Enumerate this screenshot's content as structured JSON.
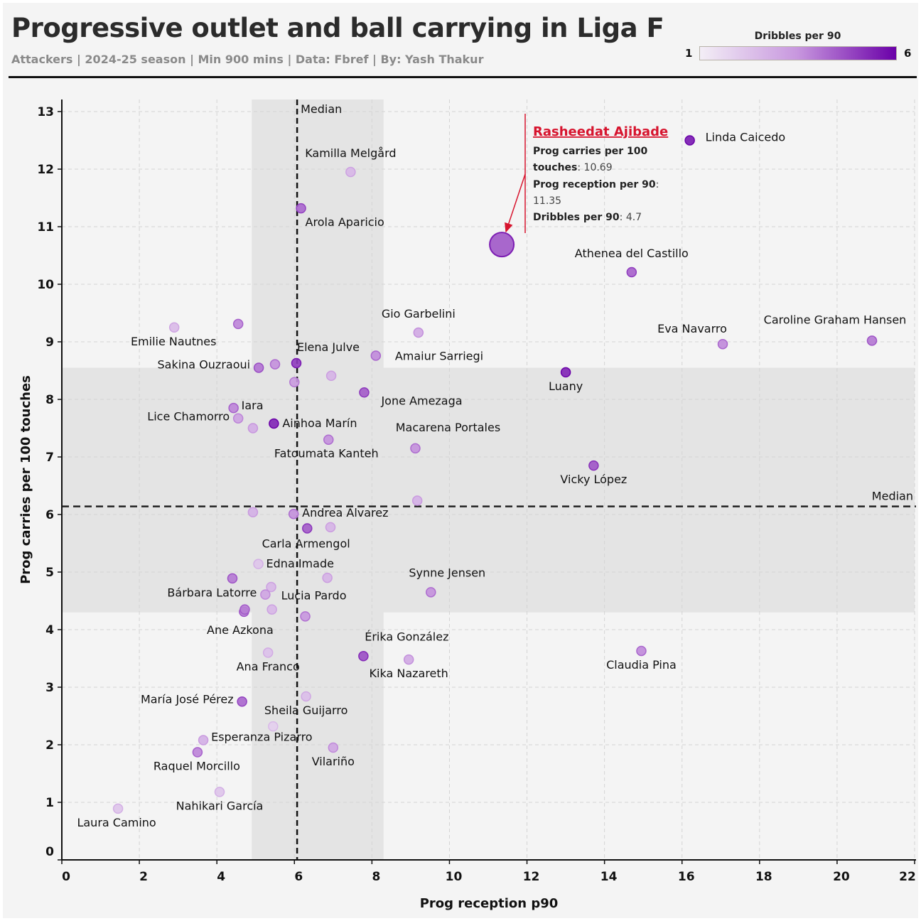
{
  "header": {
    "title": "Progressive outlet and ball carrying in Liga F",
    "subtitle": "Attackers | 2024-25 season | Min 900 mins | Data: Fbref | By: Yash Thakur"
  },
  "colorbar": {
    "title": "Dribbles per 90",
    "min_label": "1",
    "max_label": "6",
    "min": 1,
    "max": 6,
    "color_low": "#f3eef6",
    "color_high": "#6a00a8"
  },
  "annotation": {
    "player": "Rasheedat Ajibade",
    "line1_bold": "Prog carries per 100",
    "line2_bold": "touches",
    "line2_value": ": 10.69",
    "line3_bold": "Prog reception per 90",
    "line3_colon": ":",
    "line4_value": "11.35",
    "line5_bold": "Dribbles per 90",
    "line5_value": ": 4.7",
    "color": "#d7142e"
  },
  "chart_data": {
    "type": "scatter",
    "title": "Progressive outlet and ball carrying in Liga F",
    "xlabel": "Prog reception p90",
    "ylabel": "Prog carries per 100 touches",
    "xlim": [
      0,
      22
    ],
    "ylim": [
      0,
      13
    ],
    "xticks": [
      0,
      2,
      4,
      6,
      8,
      10,
      12,
      14,
      16,
      18,
      20,
      22
    ],
    "yticks": [
      0,
      1,
      2,
      3,
      4,
      5,
      6,
      7,
      8,
      9,
      10,
      11,
      12,
      13
    ],
    "grid": true,
    "median_x": 6.07,
    "median_y": 6.14,
    "median_label": "Median",
    "band_x": [
      4.9,
      8.3
    ],
    "band_y": [
      4.3,
      8.55
    ],
    "highlight": {
      "name": "Rasheedat Ajibade",
      "x": 11.35,
      "y": 10.69,
      "dribbles": 4.7
    },
    "points": [
      {
        "name": "Linda Caicedo",
        "x": 16.2,
        "y": 12.5,
        "dribbles": 5.6,
        "label": "right"
      },
      {
        "name": "Kamilla Melgård",
        "x": 7.45,
        "y": 11.95,
        "dribbles": 2.6,
        "label": "above"
      },
      {
        "name": "Arola Aparicio",
        "x": 6.17,
        "y": 11.32,
        "dribbles": 4.3,
        "label": "belowright"
      },
      {
        "name": "Athenea del Castillo",
        "x": 14.7,
        "y": 10.21,
        "dribbles": 4.4,
        "label": "above"
      },
      {
        "name": "Caroline Graham Hansen",
        "x": 20.9,
        "y": 9.02,
        "dribbles": 4.0,
        "label": "aboveleft"
      },
      {
        "name": "Eva Navarro",
        "x": 17.05,
        "y": 8.96,
        "dribbles": 3.7,
        "label": "aboveleft"
      },
      {
        "name": "Gio Garbelini",
        "x": 9.2,
        "y": 9.16,
        "dribbles": 3.0,
        "label": "above"
      },
      {
        "name": "Emilie Nautnes",
        "x": 2.9,
        "y": 9.25,
        "dribbles": 2.5,
        "label": "below"
      },
      {
        "name": "",
        "x": 4.55,
        "y": 9.31,
        "dribbles": 3.8,
        "label": "none"
      },
      {
        "name": "Amaiur Sarriegi",
        "x": 8.1,
        "y": 8.76,
        "dribbles": 3.7,
        "label": "right"
      },
      {
        "name": "Elena Julve",
        "x": 6.05,
        "y": 8.63,
        "dribbles": 5.0,
        "label": "above"
      },
      {
        "name": "Sakina Ouzraoui",
        "x": 5.08,
        "y": 8.55,
        "dribbles": 4.1,
        "label": "left"
      },
      {
        "name": "",
        "x": 5.5,
        "y": 8.61,
        "dribbles": 3.6,
        "label": "none"
      },
      {
        "name": "",
        "x": 6.0,
        "y": 8.3,
        "dribbles": 3.4,
        "label": "none"
      },
      {
        "name": "",
        "x": 6.95,
        "y": 8.41,
        "dribbles": 2.7,
        "label": "none"
      },
      {
        "name": "Jone Amezaga",
        "x": 7.8,
        "y": 8.12,
        "dribbles": 4.5,
        "label": "belowright"
      },
      {
        "name": "Luany",
        "x": 13.0,
        "y": 8.47,
        "dribbles": 5.4,
        "label": "below"
      },
      {
        "name": "Iara",
        "x": 4.43,
        "y": 7.85,
        "dribbles": 3.8,
        "label": "right"
      },
      {
        "name": "Lice Chamorro",
        "x": 4.55,
        "y": 7.67,
        "dribbles": 3.2,
        "label": "left"
      },
      {
        "name": "",
        "x": 4.93,
        "y": 7.5,
        "dribbles": 2.9,
        "label": "none"
      },
      {
        "name": "Ainhoa Marín",
        "x": 5.47,
        "y": 7.58,
        "dribbles": 5.4,
        "label": "right"
      },
      {
        "name": "Fatoumata Kanteh",
        "x": 6.88,
        "y": 7.3,
        "dribbles": 3.6,
        "label": "below"
      },
      {
        "name": "Macarena Portales",
        "x": 9.12,
        "y": 7.15,
        "dribbles": 3.6,
        "label": "aboveright"
      },
      {
        "name": "Vicky López",
        "x": 13.72,
        "y": 6.85,
        "dribbles": 4.6,
        "label": "below"
      },
      {
        "name": "",
        "x": 9.17,
        "y": 6.24,
        "dribbles": 2.8,
        "label": "none"
      },
      {
        "name": "",
        "x": 4.93,
        "y": 6.04,
        "dribbles": 2.8,
        "label": "none"
      },
      {
        "name": "Andrea Alvarez",
        "x": 5.98,
        "y": 6.01,
        "dribbles": 3.6,
        "label": "right"
      },
      {
        "name": "",
        "x": 6.33,
        "y": 5.76,
        "dribbles": 4.5,
        "label": "none"
      },
      {
        "name": "",
        "x": 6.93,
        "y": 5.78,
        "dribbles": 2.7,
        "label": "none"
      },
      {
        "name": "Carla Armengol",
        "x": 6.3,
        "y": 5.5,
        "dribbles": 0,
        "label": "labelonly"
      },
      {
        "name": "Edna Imade",
        "x": 5.07,
        "y": 5.14,
        "dribbles": 2.2,
        "label": "right"
      },
      {
        "name": "",
        "x": 4.4,
        "y": 4.89,
        "dribbles": 4.0,
        "label": "none"
      },
      {
        "name": "",
        "x": 6.85,
        "y": 4.9,
        "dribbles": 2.7,
        "label": "none"
      },
      {
        "name": "",
        "x": 5.4,
        "y": 4.74,
        "dribbles": 2.6,
        "label": "none"
      },
      {
        "name": "Bárbara Latorre",
        "x": 5.25,
        "y": 4.61,
        "dribbles": 3.1,
        "label": "left"
      },
      {
        "name": "Lucia Pardo",
        "x": 6.5,
        "y": 4.6,
        "dribbles": 0,
        "label": "labelonly"
      },
      {
        "name": "Synne Jensen",
        "x": 9.52,
        "y": 4.65,
        "dribbles": 3.6,
        "label": "aboveleft"
      },
      {
        "name": "",
        "x": 4.7,
        "y": 4.31,
        "dribbles": 4.0,
        "label": "none"
      },
      {
        "name": "",
        "x": 4.72,
        "y": 4.35,
        "dribbles": 3.9,
        "label": "none"
      },
      {
        "name": "",
        "x": 5.42,
        "y": 4.35,
        "dribbles": 2.6,
        "label": "none"
      },
      {
        "name": "",
        "x": 6.28,
        "y": 4.23,
        "dribbles": 3.5,
        "label": "none"
      },
      {
        "name": "Ane Azkona",
        "x": 4.6,
        "y": 4.0,
        "dribbles": 0,
        "label": "labelonly"
      },
      {
        "name": "Érika González",
        "x": 7.78,
        "y": 3.54,
        "dribbles": 4.7,
        "label": "aboveright"
      },
      {
        "name": "Kika Nazareth",
        "x": 8.95,
        "y": 3.48,
        "dribbles": 3.0,
        "label": "below"
      },
      {
        "name": "Claudia Pina",
        "x": 14.95,
        "y": 3.63,
        "dribbles": 3.7,
        "label": "below"
      },
      {
        "name": "Ana Franco",
        "x": 5.32,
        "y": 3.6,
        "dribbles": 2.3,
        "label": "below"
      },
      {
        "name": "María José Pérez",
        "x": 4.65,
        "y": 2.75,
        "dribbles": 4.3,
        "label": "left"
      },
      {
        "name": "Sheila Guijarro",
        "x": 6.3,
        "y": 2.84,
        "dribbles": 2.4,
        "label": "below"
      },
      {
        "name": "",
        "x": 5.45,
        "y": 2.32,
        "dribbles": 1.9,
        "label": "none"
      },
      {
        "name": "Esperanza Pizarro",
        "x": 3.65,
        "y": 2.08,
        "dribbles": 2.8,
        "label": "right"
      },
      {
        "name": "Raquel Morcillo",
        "x": 3.5,
        "y": 1.87,
        "dribbles": 3.8,
        "label": "below"
      },
      {
        "name": "Vilariño",
        "x": 7.0,
        "y": 1.95,
        "dribbles": 3.1,
        "label": "below"
      },
      {
        "name": "Nahikari García",
        "x": 4.07,
        "y": 1.18,
        "dribbles": 2.2,
        "label": "below"
      },
      {
        "name": "Laura Camino",
        "x": 1.45,
        "y": 0.89,
        "dribbles": 2.2,
        "label": "below"
      }
    ]
  }
}
